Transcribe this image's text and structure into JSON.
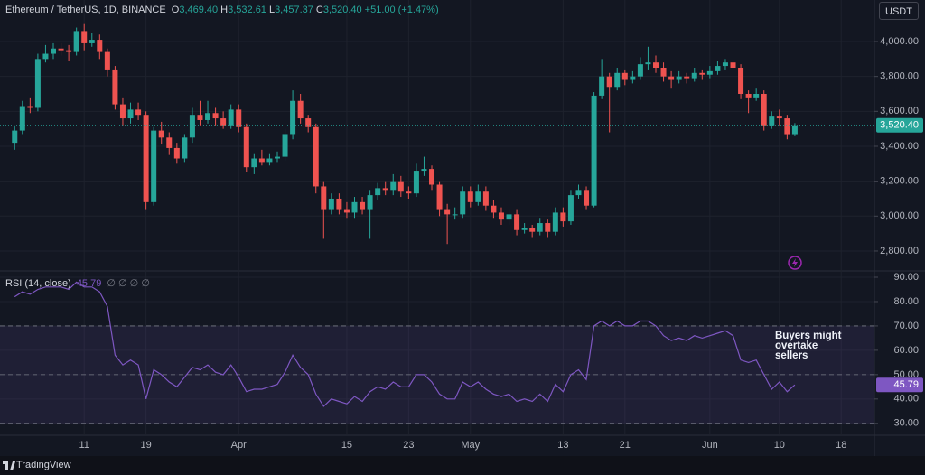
{
  "chart_data": [
    {
      "type": "candlestick",
      "symbol": "Ethereum / TetherUS, 1D, BINANCE",
      "ohlc_labels": [
        "O",
        "H",
        "L",
        "C"
      ],
      "ohlc_values": [
        "3,469.40",
        "3,532.61",
        "3,457.37",
        "3,520.40"
      ],
      "change": "+51.00 (+1.47%)",
      "currency": "USDT",
      "up_color": "#26a69a",
      "down_color": "#ef5350",
      "open": [
        3420,
        3490,
        3630,
        3620,
        3900,
        3930,
        3960,
        3950,
        3940,
        4060,
        3990,
        4010,
        3940,
        3840,
        3640,
        3560,
        3610,
        3580,
        3080,
        3490,
        3450,
        3390,
        3330,
        3450,
        3580,
        3550,
        3590,
        3560,
        3520,
        3610,
        3510,
        3280,
        3330,
        3310,
        3330,
        3340,
        3470,
        3660,
        3560,
        3510,
        3170,
        3040,
        3100,
        3040,
        3020,
        3080,
        3040,
        3120,
        3160,
        3150,
        3200,
        3140,
        3130,
        3260,
        3270,
        3180,
        3040,
        3010,
        3010,
        3140,
        3080,
        3140,
        3060,
        3020,
        2980,
        3010,
        2920,
        2930,
        2910,
        2960,
        2910,
        3020,
        2970,
        3120,
        3150,
        3060,
        3690,
        3800,
        3740,
        3820,
        3780,
        3800,
        3870,
        3880,
        3850,
        3800,
        3780,
        3800,
        3790,
        3820,
        3810,
        3830,
        3860,
        3880,
        3850,
        3700,
        3680,
        3700,
        3520,
        3570,
        3560,
        3469.4
      ],
      "high": [
        3520,
        3660,
        3680,
        3930,
        3980,
        3990,
        3990,
        3980,
        4080,
        4100,
        4050,
        4040,
        3960,
        3860,
        3680,
        3650,
        3650,
        3600,
        3510,
        3540,
        3480,
        3420,
        3470,
        3620,
        3660,
        3660,
        3620,
        3600,
        3640,
        3640,
        3530,
        3360,
        3380,
        3360,
        3370,
        3500,
        3720,
        3700,
        3580,
        3530,
        3200,
        3130,
        3130,
        3080,
        3110,
        3110,
        3150,
        3190,
        3200,
        3240,
        3230,
        3170,
        3300,
        3340,
        3290,
        3200,
        3070,
        3050,
        3170,
        3170,
        3180,
        3170,
        3090,
        3050,
        3040,
        3040,
        2960,
        2950,
        2990,
        2980,
        3050,
        3050,
        3150,
        3180,
        3170,
        3710,
        3900,
        3820,
        3850,
        3840,
        3830,
        3910,
        3970,
        3920,
        3880,
        3830,
        3830,
        3820,
        3850,
        3840,
        3860,
        3890,
        3900,
        3890,
        3870,
        3720,
        3730,
        3720,
        3600,
        3610,
        3580,
        3532.61
      ],
      "low": [
        3380,
        3470,
        3590,
        3600,
        3880,
        3900,
        3920,
        3890,
        3920,
        3950,
        3970,
        3900,
        3800,
        3610,
        3520,
        3530,
        3550,
        3040,
        3060,
        3410,
        3350,
        3300,
        3310,
        3420,
        3520,
        3530,
        3520,
        3500,
        3500,
        3480,
        3250,
        3240,
        3290,
        3290,
        3310,
        3320,
        3440,
        3530,
        3480,
        3130,
        2870,
        3010,
        3010,
        2990,
        2990,
        3010,
        2870,
        3090,
        3120,
        3120,
        3110,
        3100,
        3110,
        3230,
        3150,
        3000,
        2840,
        2980,
        2990,
        3050,
        3060,
        3030,
        2990,
        2950,
        2950,
        2890,
        2900,
        2880,
        2890,
        2880,
        2890,
        2940,
        2950,
        3100,
        3040,
        3050,
        3670,
        3480,
        3720,
        3750,
        3760,
        3780,
        3840,
        3820,
        3770,
        3730,
        3760,
        3760,
        3770,
        3780,
        3790,
        3810,
        3840,
        3800,
        3670,
        3590,
        3660,
        3490,
        3500,
        3520,
        3440,
        3457.37
      ],
      "close": [
        3490,
        3630,
        3620,
        3900,
        3930,
        3960,
        3950,
        3940,
        4060,
        3990,
        4010,
        3940,
        3840,
        3640,
        3560,
        3610,
        3580,
        3080,
        3490,
        3450,
        3390,
        3330,
        3450,
        3580,
        3550,
        3590,
        3560,
        3520,
        3610,
        3510,
        3280,
        3330,
        3310,
        3330,
        3340,
        3470,
        3660,
        3560,
        3510,
        3170,
        3040,
        3100,
        3040,
        3020,
        3080,
        3040,
        3120,
        3160,
        3150,
        3200,
        3140,
        3130,
        3260,
        3270,
        3180,
        3040,
        3010,
        3010,
        3140,
        3080,
        3140,
        3060,
        3020,
        2980,
        3010,
        2920,
        2930,
        2910,
        2960,
        2910,
        3020,
        2970,
        3120,
        3150,
        3060,
        3690,
        3800,
        3740,
        3820,
        3780,
        3800,
        3870,
        3880,
        3850,
        3800,
        3780,
        3800,
        3790,
        3820,
        3810,
        3830,
        3860,
        3880,
        3850,
        3700,
        3680,
        3700,
        3520,
        3570,
        3560,
        3469.4,
        3520.4
      ],
      "ylim": [
        2686,
        4238
      ],
      "yticks": [
        {
          "value": 2800,
          "label": "2,800.00"
        },
        {
          "value": 3000,
          "label": "3,000.00"
        },
        {
          "value": 3200,
          "label": "3,200.00"
        },
        {
          "value": 3400,
          "label": "3,400.00"
        },
        {
          "value": 3600,
          "label": "3,600.00"
        },
        {
          "value": 3800,
          "label": "3,800.00"
        },
        {
          "value": 4000,
          "label": "4,000.00"
        }
      ],
      "xlim": [
        -1.9,
        111.3
      ],
      "xticks": [
        {
          "value": 9,
          "label": "11"
        },
        {
          "value": 17,
          "label": "19"
        },
        {
          "value": 29,
          "label": "Apr"
        },
        {
          "value": 43,
          "label": "15"
        },
        {
          "value": 51,
          "label": "23"
        },
        {
          "value": 59,
          "label": "May"
        },
        {
          "value": 71,
          "label": "13"
        },
        {
          "value": 79,
          "label": "21"
        },
        {
          "value": 90,
          "label": "Jun"
        },
        {
          "value": 99,
          "label": "10"
        },
        {
          "value": 107,
          "label": "18"
        }
      ],
      "grid": true
    },
    {
      "type": "line",
      "title": "RSI (14, close)",
      "indicators": "∅ ∅ ∅ ∅",
      "color": "#7e57c2",
      "values": [
        82,
        84,
        83,
        85,
        86,
        86,
        86,
        85,
        88,
        86,
        86,
        84,
        78,
        58,
        54,
        56,
        54,
        40,
        52,
        50,
        47,
        45,
        49,
        53,
        52,
        54,
        51,
        50,
        54,
        49,
        43,
        44,
        44,
        45,
        46,
        51,
        58,
        53,
        50,
        42,
        37,
        40,
        39,
        38,
        41,
        39,
        43,
        45,
        44,
        47,
        45,
        45,
        50,
        50,
        47,
        42,
        40,
        40,
        47,
        45,
        47,
        44,
        42,
        41,
        42,
        39,
        40,
        39,
        42,
        39,
        46,
        43,
        50,
        52,
        48,
        70,
        72,
        70,
        72,
        70,
        70,
        72,
        72,
        70,
        66,
        64,
        65,
        64,
        66,
        65,
        66,
        67,
        68,
        66,
        56,
        55,
        56,
        50,
        44,
        47,
        43,
        45.79
      ],
      "levels": [
        30,
        50,
        70
      ],
      "ylim": [
        25.1,
        92.6
      ],
      "yticks": [
        {
          "value": 30,
          "label": "30.00"
        },
        {
          "value": 40,
          "label": "40.00"
        },
        {
          "value": 50,
          "label": "50.00"
        },
        {
          "value": 60,
          "label": "60.00"
        },
        {
          "value": 70,
          "label": "70.00"
        },
        {
          "value": 80,
          "label": "80.00"
        },
        {
          "value": 90,
          "label": "90.00"
        }
      ],
      "annotation": "Buyers might overtake sellers"
    }
  ],
  "footer": "TradingView"
}
